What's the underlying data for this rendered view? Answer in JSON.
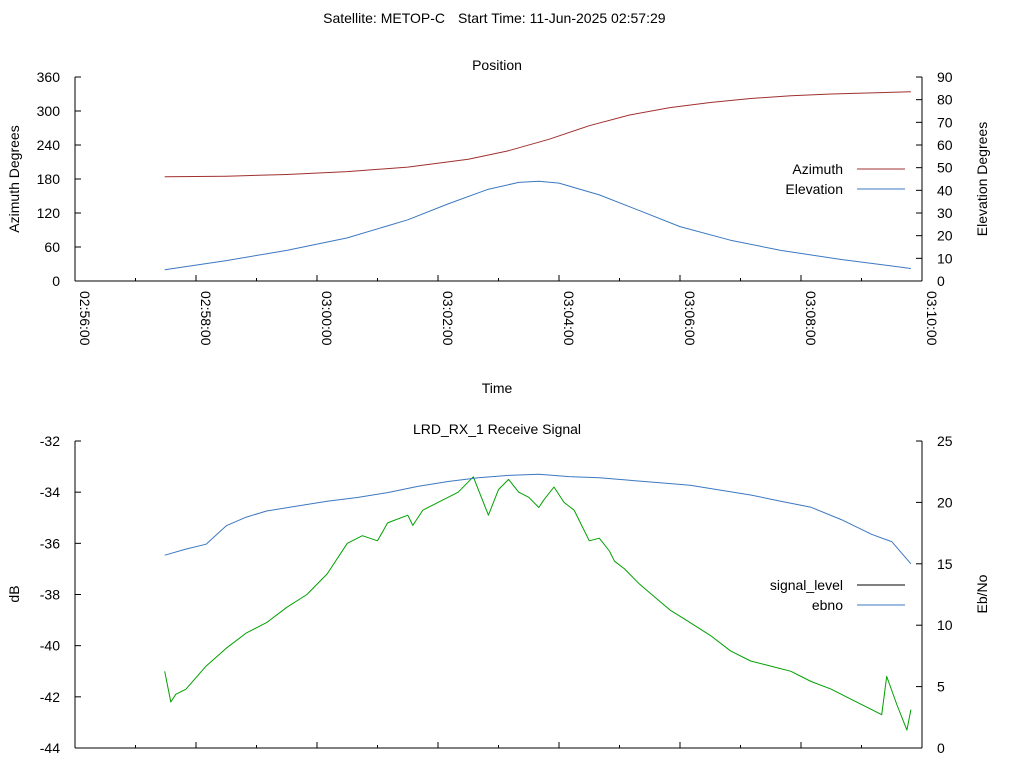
{
  "header": {
    "satellite": "Satellite: METOP-C",
    "start_time": "Start Time: 11-Jun-2025 02:57:29"
  },
  "chart_data": [
    {
      "type": "line",
      "title": "Position",
      "xlabel": "Time",
      "ylabel": "Azimuth Degrees",
      "y2label": "Elevation Degrees",
      "xlim": [
        0,
        840
      ],
      "ylim": [
        0,
        360
      ],
      "y2lim": [
        0,
        90
      ],
      "x_ticks": [
        {
          "v": 0,
          "label": "02:56:00"
        },
        {
          "v": 120,
          "label": "02:58:00"
        },
        {
          "v": 240,
          "label": "03:00:00"
        },
        {
          "v": 360,
          "label": "03:02:00"
        },
        {
          "v": 480,
          "label": "03:04:00"
        },
        {
          "v": 600,
          "label": "03:06:00"
        },
        {
          "v": 720,
          "label": "03:08:00"
        },
        {
          "v": 840,
          "label": "03:10:00"
        }
      ],
      "y_ticks": [
        "0",
        "60",
        "120",
        "180",
        "240",
        "300",
        "360"
      ],
      "y2_ticks": [
        "0",
        "10",
        "20",
        "30",
        "40",
        "50",
        "60",
        "70",
        "80",
        "90"
      ],
      "legend_position": "right",
      "series": [
        {
          "name": "Azimuth",
          "axis": "y",
          "color": "#a0302e",
          "x": [
            89,
            150,
            210,
            270,
            330,
            390,
            430,
            470,
            510,
            550,
            590,
            630,
            670,
            710,
            750,
            790,
            829
          ],
          "y": [
            184,
            185,
            188,
            193,
            201,
            215,
            230,
            250,
            274,
            293,
            306,
            315,
            322,
            327,
            330,
            332,
            334
          ]
        },
        {
          "name": "Elevation",
          "axis": "y2",
          "color": "#3c78c0",
          "x": [
            89,
            150,
            210,
            270,
            330,
            370,
            410,
            440,
            460,
            480,
            520,
            560,
            600,
            650,
            700,
            760,
            829
          ],
          "y": [
            5,
            9,
            13.5,
            19,
            27,
            34,
            40.5,
            43.5,
            44,
            43.2,
            38,
            31,
            24,
            18,
            13.5,
            9.5,
            5.5
          ]
        }
      ]
    },
    {
      "type": "line",
      "title": "LRD_RX_1 Receive Signal",
      "ylabel": "dB",
      "y2label": "Eb/No",
      "xlim": [
        0,
        840
      ],
      "ylim": [
        -44,
        -32
      ],
      "y2lim": [
        0,
        25
      ],
      "y_ticks": [
        "-44",
        "-42",
        "-40",
        "-38",
        "-36",
        "-34",
        "-32"
      ],
      "y2_ticks": [
        "0",
        "5",
        "10",
        "15",
        "20",
        "25"
      ],
      "legend_position": "right",
      "series": [
        {
          "name": "signal_level",
          "axis": "y",
          "color": "#00a000",
          "legend_color": "#000000",
          "x": [
            89,
            95,
            100,
            110,
            130,
            150,
            170,
            190,
            210,
            230,
            250,
            270,
            285,
            300,
            310,
            330,
            335,
            345,
            360,
            380,
            395,
            405,
            410,
            420,
            430,
            440,
            450,
            460,
            465,
            475,
            485,
            495,
            510,
            520,
            530,
            535,
            545,
            560,
            575,
            590,
            610,
            630,
            650,
            670,
            690,
            710,
            730,
            750,
            770,
            790,
            800,
            805,
            815,
            825,
            829
          ],
          "y": [
            -41,
            -42.2,
            -41.9,
            -41.7,
            -40.8,
            -40.1,
            -39.5,
            -39.1,
            -38.5,
            -38.0,
            -37.2,
            -36.0,
            -35.7,
            -35.9,
            -35.2,
            -34.9,
            -35.3,
            -34.7,
            -34.4,
            -34.0,
            -33.4,
            -34.4,
            -34.9,
            -33.9,
            -33.5,
            -34.0,
            -34.2,
            -34.6,
            -34.3,
            -33.8,
            -34.4,
            -34.7,
            -35.9,
            -35.8,
            -36.3,
            -36.7,
            -37.0,
            -37.6,
            -38.1,
            -38.6,
            -39.1,
            -39.6,
            -40.2,
            -40.6,
            -40.8,
            -41.0,
            -41.4,
            -41.7,
            -42.1,
            -42.5,
            -42.7,
            -41.2,
            -42.3,
            -43.3,
            -42.5
          ]
        },
        {
          "name": "ebno",
          "axis": "y2",
          "color": "#3c78c0",
          "x": [
            89,
            110,
            130,
            150,
            170,
            190,
            220,
            250,
            280,
            310,
            340,
            370,
            400,
            430,
            460,
            490,
            520,
            550,
            580,
            610,
            640,
            670,
            700,
            730,
            760,
            790,
            810,
            829
          ],
          "y": [
            15.7,
            16.2,
            16.6,
            18.1,
            18.8,
            19.3,
            19.7,
            20.1,
            20.4,
            20.8,
            21.3,
            21.7,
            22.0,
            22.2,
            22.3,
            22.1,
            22.0,
            21.8,
            21.6,
            21.4,
            21.0,
            20.6,
            20.1,
            19.6,
            18.6,
            17.4,
            16.8,
            15.0
          ]
        }
      ]
    }
  ]
}
